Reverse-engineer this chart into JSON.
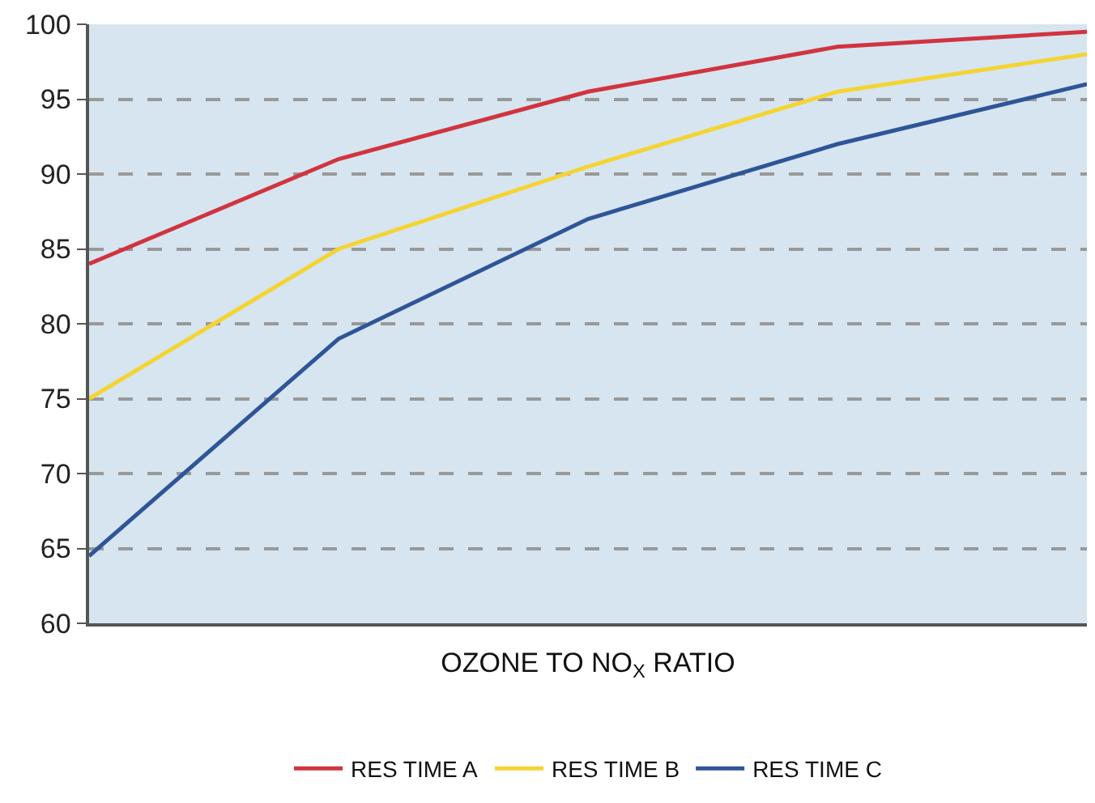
{
  "chart_data": {
    "type": "line",
    "xlabel": "OZONE TO NO$_{X}$ RATIO",
    "categories": [
      null,
      null,
      null,
      null,
      null
    ],
    "series": [
      {
        "name": "RES TIME A",
        "color": "#d1343f",
        "values": [
          84,
          91,
          95.5,
          98.5,
          99.5
        ]
      },
      {
        "name": "RES TIME B",
        "color": "#f5d432",
        "values": [
          75,
          85,
          90.5,
          95.5,
          98
        ]
      },
      {
        "name": "RES TIME C",
        "color": "#2f5597",
        "values": [
          64.5,
          79,
          87,
          92,
          96
        ]
      }
    ],
    "ylim": [
      60,
      100
    ],
    "yticks": [
      60,
      65,
      70,
      75,
      80,
      85,
      90,
      95,
      100
    ],
    "grid": "y",
    "legend": "bottom",
    "marker": "none",
    "line_style": "solid"
  }
}
